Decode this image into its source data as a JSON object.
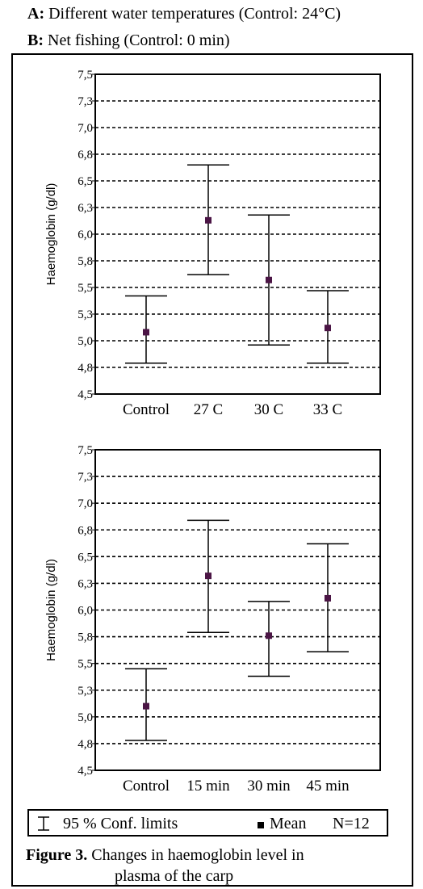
{
  "header": {
    "a_key": "A:",
    "a_text": "Different water temperatures (Control: 24°C)",
    "b_key": "B:",
    "b_text": "Net fishing (Control: 0 min)"
  },
  "chart_data": [
    {
      "type": "errorbar",
      "title": "",
      "xlabel": "",
      "ylabel": "Haemoglobin (g/dl)",
      "ylim": [
        4.5,
        7.5
      ],
      "yticks": [
        "4,5",
        "4,8",
        "5,0",
        "5,3",
        "5,5",
        "5,8",
        "6,0",
        "6,3",
        "6,5",
        "6,8",
        "7,0",
        "7,3",
        "7,5"
      ],
      "grid": true,
      "categories": [
        "Control",
        "27 C",
        "30 C",
        "33 C"
      ],
      "series": [
        {
          "values": [
            5.08,
            6.13,
            5.57,
            5.12
          ],
          "lower": [
            4.79,
            5.62,
            4.96,
            4.79
          ],
          "upper": [
            5.42,
            6.65,
            6.18,
            5.47
          ]
        }
      ]
    },
    {
      "type": "errorbar",
      "title": "",
      "xlabel": "",
      "ylabel": "Haemoglobin (g/dl)",
      "ylim": [
        4.5,
        7.5
      ],
      "yticks": [
        "4,5",
        "4,8",
        "5,0",
        "5,3",
        "5,5",
        "5,8",
        "6,0",
        "6,3",
        "6,5",
        "6,8",
        "7,0",
        "7,3",
        "7,5"
      ],
      "grid": true,
      "categories": [
        "Control",
        "15 min",
        "30 min",
        "45 min"
      ],
      "series": [
        {
          "values": [
            5.1,
            6.32,
            5.76,
            6.11
          ],
          "lower": [
            4.78,
            5.79,
            5.38,
            5.61
          ],
          "upper": [
            5.45,
            6.84,
            6.08,
            6.62
          ]
        }
      ]
    }
  ],
  "legend": {
    "ci_label": "95 % Conf. limits",
    "mean_label": "Mean",
    "n_label": "N=12"
  },
  "caption": {
    "fig_label": "Figure 3.",
    "line1": "Changes in haemoglobin level in",
    "line2": "plasma of the carp"
  },
  "colors": {
    "mean_marker": "#4b1545",
    "line": "#000000"
  }
}
